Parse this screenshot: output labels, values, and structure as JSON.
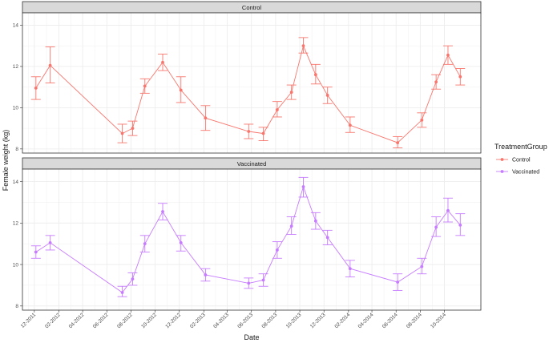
{
  "chart_data": {
    "type": "line",
    "xlabel": "Date",
    "ylabel": "Female weight (kg)",
    "x_tick_labels": [
      "12-2011",
      "02-2012",
      "04-2012",
      "06-2012",
      "08-2012",
      "10-2012",
      "12-2012",
      "02-2013",
      "04-2013",
      "06-2013",
      "08-2013",
      "10-2013",
      "12-2013",
      "02-2014",
      "04-2014",
      "06-2014",
      "08-2014",
      "10-2014"
    ],
    "y_ticks": [
      "8",
      "10",
      "12",
      "14"
    ],
    "ylim": [
      7.8,
      14.6
    ],
    "grid": true,
    "legend": {
      "title": "TreatmentGroup",
      "position": "right",
      "entries": [
        "Control",
        "Vaccinated"
      ]
    },
    "panels": [
      {
        "strip": "Control",
        "color": "#F8766D",
        "points": [
          {
            "x": "2011-12-05",
            "y": 10.95,
            "lo": 10.4,
            "hi": 11.5
          },
          {
            "x": "2012-01-10",
            "y": 12.05,
            "lo": 11.2,
            "hi": 12.95
          },
          {
            "x": "2012-07-10",
            "y": 8.75,
            "lo": 8.3,
            "hi": 9.2
          },
          {
            "x": "2012-08-05",
            "y": 9.0,
            "lo": 8.65,
            "hi": 9.35
          },
          {
            "x": "2012-09-05",
            "y": 11.05,
            "lo": 10.7,
            "hi": 11.4
          },
          {
            "x": "2012-10-20",
            "y": 12.2,
            "lo": 11.8,
            "hi": 12.6
          },
          {
            "x": "2012-12-05",
            "y": 10.85,
            "lo": 10.25,
            "hi": 11.5
          },
          {
            "x": "2013-02-05",
            "y": 9.5,
            "lo": 8.9,
            "hi": 10.1
          },
          {
            "x": "2013-05-25",
            "y": 8.85,
            "lo": 8.5,
            "hi": 9.2
          },
          {
            "x": "2013-07-01",
            "y": 8.75,
            "lo": 8.4,
            "hi": 9.05
          },
          {
            "x": "2013-08-05",
            "y": 9.9,
            "lo": 9.55,
            "hi": 10.3
          },
          {
            "x": "2013-09-10",
            "y": 10.75,
            "lo": 10.4,
            "hi": 11.1
          },
          {
            "x": "2013-10-10",
            "y": 13.0,
            "lo": 12.65,
            "hi": 13.4
          },
          {
            "x": "2013-11-10",
            "y": 11.6,
            "lo": 11.15,
            "hi": 12.1
          },
          {
            "x": "2013-12-10",
            "y": 10.6,
            "lo": 10.2,
            "hi": 11.0
          },
          {
            "x": "2014-02-05",
            "y": 9.15,
            "lo": 8.8,
            "hi": 9.55
          },
          {
            "x": "2014-06-05",
            "y": 8.3,
            "lo": 8.05,
            "hi": 8.6
          },
          {
            "x": "2014-08-05",
            "y": 9.4,
            "lo": 9.05,
            "hi": 9.75
          },
          {
            "x": "2014-09-10",
            "y": 11.25,
            "lo": 10.9,
            "hi": 11.6
          },
          {
            "x": "2014-10-10",
            "y": 12.55,
            "lo": 12.1,
            "hi": 13.0
          },
          {
            "x": "2014-11-10",
            "y": 11.5,
            "lo": 11.1,
            "hi": 11.9
          }
        ]
      },
      {
        "strip": "Vaccinated",
        "color": "#C77CFF",
        "points": [
          {
            "x": "2011-12-05",
            "y": 10.6,
            "lo": 10.3,
            "hi": 10.9
          },
          {
            "x": "2012-01-10",
            "y": 11.05,
            "lo": 10.7,
            "hi": 11.4
          },
          {
            "x": "2012-07-10",
            "y": 8.65,
            "lo": 8.45,
            "hi": 8.95
          },
          {
            "x": "2012-08-05",
            "y": 9.3,
            "lo": 9.0,
            "hi": 9.6
          },
          {
            "x": "2012-09-05",
            "y": 11.0,
            "lo": 10.6,
            "hi": 11.4
          },
          {
            "x": "2012-10-20",
            "y": 12.55,
            "lo": 12.15,
            "hi": 12.95
          },
          {
            "x": "2012-12-05",
            "y": 11.05,
            "lo": 10.65,
            "hi": 11.4
          },
          {
            "x": "2013-02-05",
            "y": 9.5,
            "lo": 9.2,
            "hi": 9.8
          },
          {
            "x": "2013-05-25",
            "y": 9.1,
            "lo": 8.85,
            "hi": 9.35
          },
          {
            "x": "2013-07-01",
            "y": 9.25,
            "lo": 8.95,
            "hi": 9.55
          },
          {
            "x": "2013-08-05",
            "y": 10.7,
            "lo": 10.3,
            "hi": 11.1
          },
          {
            "x": "2013-09-10",
            "y": 11.85,
            "lo": 11.45,
            "hi": 12.3
          },
          {
            "x": "2013-10-10",
            "y": 13.75,
            "lo": 13.25,
            "hi": 14.2
          },
          {
            "x": "2013-11-10",
            "y": 12.1,
            "lo": 11.7,
            "hi": 12.5
          },
          {
            "x": "2013-12-10",
            "y": 11.3,
            "lo": 10.95,
            "hi": 11.65
          },
          {
            "x": "2014-02-05",
            "y": 9.8,
            "lo": 9.4,
            "hi": 10.2
          },
          {
            "x": "2014-06-05",
            "y": 9.15,
            "lo": 8.75,
            "hi": 9.55
          },
          {
            "x": "2014-08-05",
            "y": 9.9,
            "lo": 9.55,
            "hi": 10.3
          },
          {
            "x": "2014-09-10",
            "y": 11.8,
            "lo": 11.35,
            "hi": 12.3
          },
          {
            "x": "2014-10-10",
            "y": 12.6,
            "lo": 12.05,
            "hi": 13.2
          },
          {
            "x": "2014-11-10",
            "y": 11.9,
            "lo": 11.4,
            "hi": 12.45
          }
        ]
      }
    ]
  }
}
